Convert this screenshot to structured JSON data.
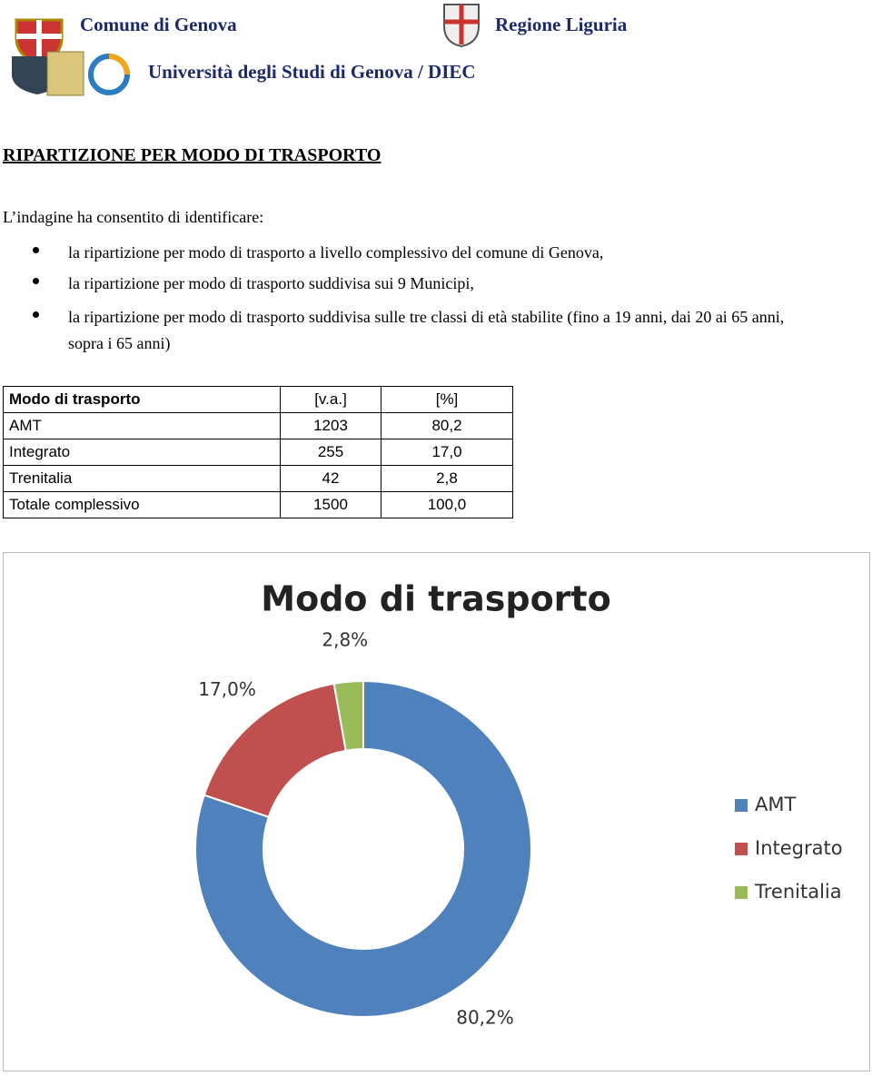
{
  "header": {
    "left": "Comune di Genova",
    "right": "Regione Liguria",
    "university": "Università degli Studi di Genova / DIEC"
  },
  "heading": "RIPARTIZIONE PER MODO DI TRASPORTO",
  "intro": "L’indagine ha consentito di identificare:",
  "bullets": [
    "la ripartizione per modo di trasporto a livello complessivo del comune di Genova,",
    "la ripartizione per modo di trasporto suddivisa sui 9 Municipi,",
    "la ripartizione per modo di trasporto suddivisa sulle tre classi di età stabilite (fino a 19 anni, dai 20 ai 65 anni, sopra i 65 anni)"
  ],
  "table": {
    "header": [
      "Modo di trasporto",
      "[v.a.]",
      "[%]"
    ],
    "rows": [
      [
        "AMT",
        "1203",
        "80,2"
      ],
      [
        "Integrato",
        "255",
        "17,0"
      ],
      [
        "Trenitalia",
        "42",
        "2,8"
      ],
      [
        "Totale complessivo",
        "1500",
        "100,0"
      ]
    ]
  },
  "chart_data": {
    "type": "donut",
    "title": "Modo di trasporto",
    "categories": [
      "AMT",
      "Integrato",
      "Trenitalia"
    ],
    "values": [
      80.2,
      17.0,
      2.8
    ],
    "value_labels": [
      "80,2%",
      "17,0%",
      "2,8%"
    ],
    "colors": [
      "#4f81bd",
      "#c0504d",
      "#9bbb59"
    ],
    "legend": "right"
  }
}
